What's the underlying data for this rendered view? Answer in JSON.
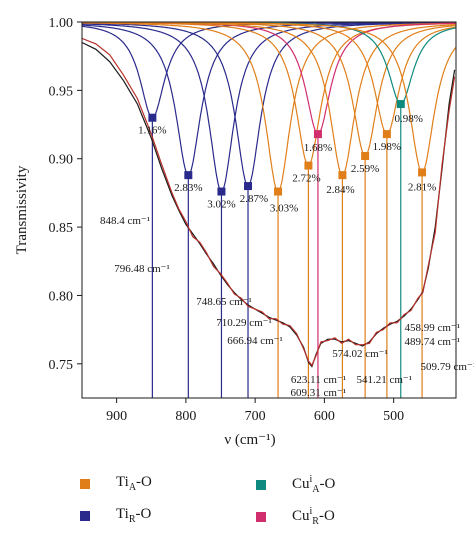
{
  "chart_data": {
    "type": "line",
    "xlabel": "ν (cm⁻¹)",
    "ylabel": "Transmissivity",
    "xlim": [
      950,
      410
    ],
    "ylim": [
      0.725,
      1.0
    ],
    "x_ticks": [
      900,
      800,
      700,
      600,
      500
    ],
    "y_ticks": [
      0.75,
      0.8,
      0.85,
      0.9,
      0.95,
      1.0
    ],
    "x_tick_labels": [
      "900",
      "800",
      "700",
      "600",
      "500"
    ],
    "y_tick_labels": [
      "0.75",
      "0.80",
      "0.85",
      "0.90",
      "0.95",
      "1.00"
    ],
    "grid": false,
    "legend": [
      {
        "sym": "Ti",
        "sub": "A",
        "sup": "",
        "suffix": "-O",
        "color": "#E07F1A"
      },
      {
        "sym": "Ti",
        "sub": "R",
        "sup": "",
        "suffix": "-O",
        "color": "#2A2A8C"
      },
      {
        "sym": "Cu",
        "sub": "A",
        "sup": "i",
        "suffix": "-O",
        "color": "#0F8A7E"
      },
      {
        "sym": "Cu",
        "sub": "R",
        "sup": "i",
        "suffix": "-O",
        "color": "#D12E6E"
      }
    ],
    "peaks": [
      {
        "center": 848.4,
        "min": 0.93,
        "percent": "1.16%",
        "group": "TiR",
        "color": "#2A2A8C",
        "label": "848.4 cm⁻¹"
      },
      {
        "center": 796.48,
        "min": 0.888,
        "percent": "2.83%",
        "group": "TiR",
        "color": "#2A2A8C",
        "label": "796.48 cm⁻¹"
      },
      {
        "center": 748.65,
        "min": 0.876,
        "percent": "3.02%",
        "group": "TiR",
        "color": "#2A2A8C",
        "label": "748.65 cm⁻¹"
      },
      {
        "center": 710.29,
        "min": 0.88,
        "percent": "2.87%",
        "group": "TiR",
        "color": "#2A2A8C",
        "label": "710.29 cm⁻¹"
      },
      {
        "center": 666.94,
        "min": 0.876,
        "percent": "3.03%",
        "group": "TiA",
        "color": "#E07F1A",
        "label": "666.94 cm⁻¹"
      },
      {
        "center": 623.11,
        "min": 0.895,
        "percent": "2.72%",
        "group": "TiA",
        "color": "#E07F1A",
        "label": "623.11 cm⁻¹"
      },
      {
        "center": 609.31,
        "min": 0.918,
        "percent": "1.68%",
        "group": "CuR",
        "color": "#D12E6E",
        "label": "609.31 cm⁻¹"
      },
      {
        "center": 574.02,
        "min": 0.888,
        "percent": "2.84%",
        "group": "TiA",
        "color": "#E07F1A",
        "label": "574.02 cm⁻¹"
      },
      {
        "center": 541.21,
        "min": 0.902,
        "percent": "2.59%",
        "group": "TiA",
        "color": "#E07F1A",
        "label": "541.21 cm⁻¹"
      },
      {
        "center": 509.79,
        "min": 0.918,
        "percent": "1.98%",
        "group": "TiA",
        "color": "#E07F1A",
        "label": "509.79 cm⁻¹"
      },
      {
        "center": 489.74,
        "min": 0.94,
        "percent": "0.98%",
        "group": "CuA",
        "color": "#0F8A7E",
        "label": "489.74 cm⁻¹"
      },
      {
        "center": 458.99,
        "min": 0.89,
        "percent": "2.81%",
        "group": "TiA",
        "color": "#E07F1A",
        "label": "458.99 cm⁻¹"
      }
    ],
    "series": [
      {
        "color": "#1a1a1a",
        "x": [
          950,
          930,
          910,
          890,
          870,
          850,
          835,
          820,
          810,
          800,
          790,
          780,
          770,
          760,
          750,
          740,
          730,
          720,
          710,
          700,
          690,
          680,
          670,
          660,
          650,
          640,
          630,
          623,
          618,
          612,
          605,
          595,
          585,
          575,
          565,
          555,
          545,
          535,
          525,
          515,
          505,
          495,
          485,
          475,
          465,
          458,
          450,
          440,
          430,
          420,
          412
        ],
        "values": [
          0.985,
          0.98,
          0.971,
          0.957,
          0.94,
          0.915,
          0.893,
          0.873,
          0.862,
          0.852,
          0.845,
          0.838,
          0.83,
          0.823,
          0.815,
          0.808,
          0.802,
          0.797,
          0.793,
          0.79,
          0.787,
          0.784,
          0.782,
          0.78,
          0.777,
          0.771,
          0.762,
          0.751,
          0.748,
          0.757,
          0.765,
          0.768,
          0.768,
          0.766,
          0.767,
          0.765,
          0.763,
          0.766,
          0.772,
          0.776,
          0.779,
          0.781,
          0.785,
          0.79,
          0.797,
          0.803,
          0.82,
          0.85,
          0.893,
          0.94,
          0.965
        ]
      },
      {
        "color": "#B8302A",
        "x": [
          950,
          930,
          910,
          890,
          870,
          850,
          835,
          820,
          810,
          800,
          790,
          780,
          770,
          760,
          750,
          740,
          730,
          720,
          710,
          700,
          690,
          680,
          670,
          660,
          650,
          640,
          630,
          623,
          618,
          612,
          605,
          595,
          585,
          575,
          565,
          555,
          545,
          535,
          525,
          515,
          505,
          495,
          485,
          475,
          465,
          458,
          450,
          440,
          430,
          420,
          412
        ],
        "values": [
          0.988,
          0.984,
          0.976,
          0.961,
          0.944,
          0.918,
          0.896,
          0.875,
          0.863,
          0.854,
          0.843,
          0.839,
          0.831,
          0.821,
          0.816,
          0.809,
          0.801,
          0.798,
          0.792,
          0.79,
          0.788,
          0.783,
          0.783,
          0.779,
          0.778,
          0.772,
          0.761,
          0.752,
          0.749,
          0.756,
          0.766,
          0.767,
          0.769,
          0.765,
          0.768,
          0.764,
          0.764,
          0.765,
          0.773,
          0.775,
          0.78,
          0.78,
          0.786,
          0.789,
          0.798,
          0.802,
          0.822,
          0.846,
          0.896,
          0.935,
          0.96
        ]
      }
    ]
  }
}
